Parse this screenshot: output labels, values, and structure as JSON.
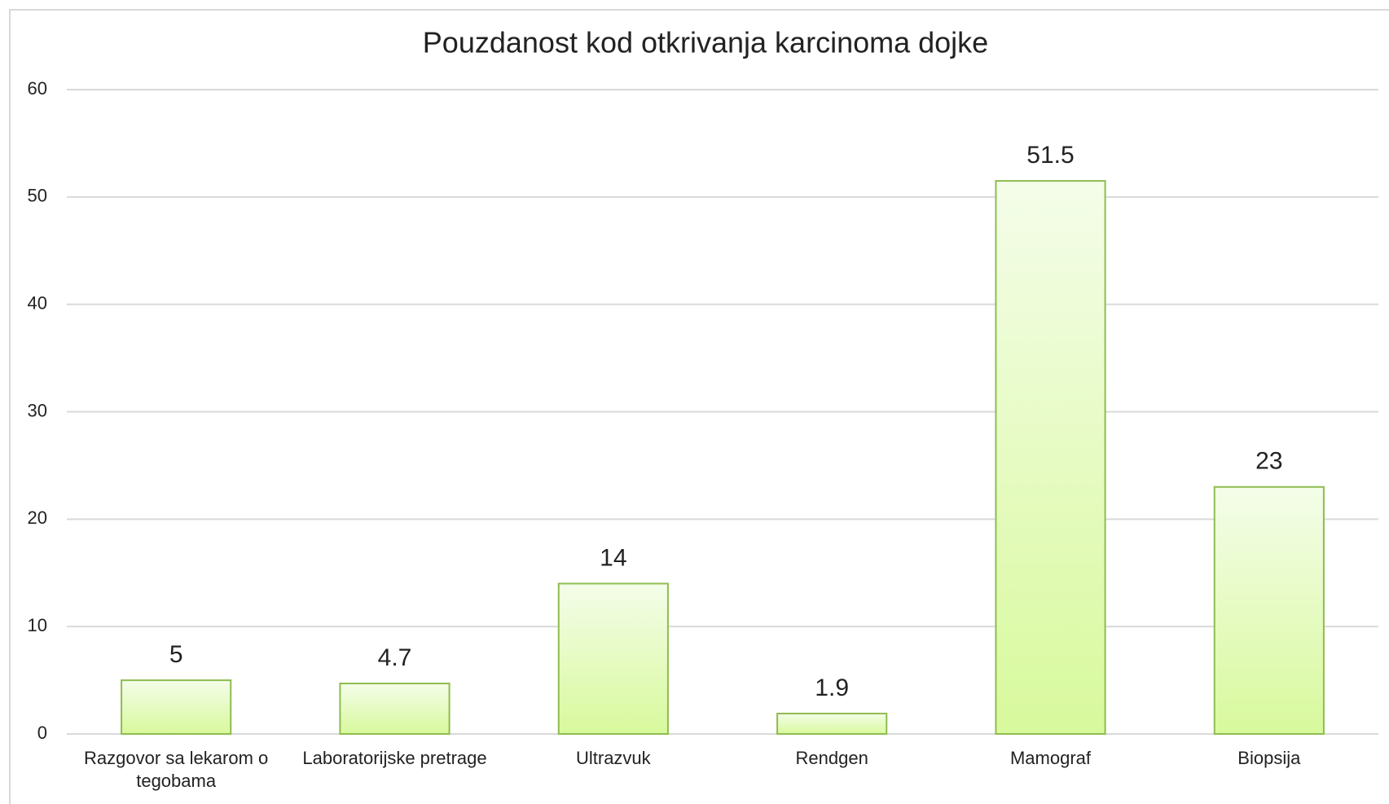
{
  "chart_data": {
    "type": "bar",
    "title": "Pouzdanost kod otkrivanja karcinoma dojke",
    "categories": [
      "Razgovor sa lekarom o tegobama",
      "Laboratorijske pretrage",
      "Ultrazvuk",
      "Rendgen",
      "Mamograf",
      "Biopsija"
    ],
    "values": [
      5,
      4.7,
      14,
      1.9,
      51.5,
      23
    ],
    "color": "#8fbc4f",
    "ylim": [
      0,
      60
    ],
    "yticks": [
      0,
      10,
      20,
      30,
      40,
      50,
      60
    ],
    "grid": true
  }
}
